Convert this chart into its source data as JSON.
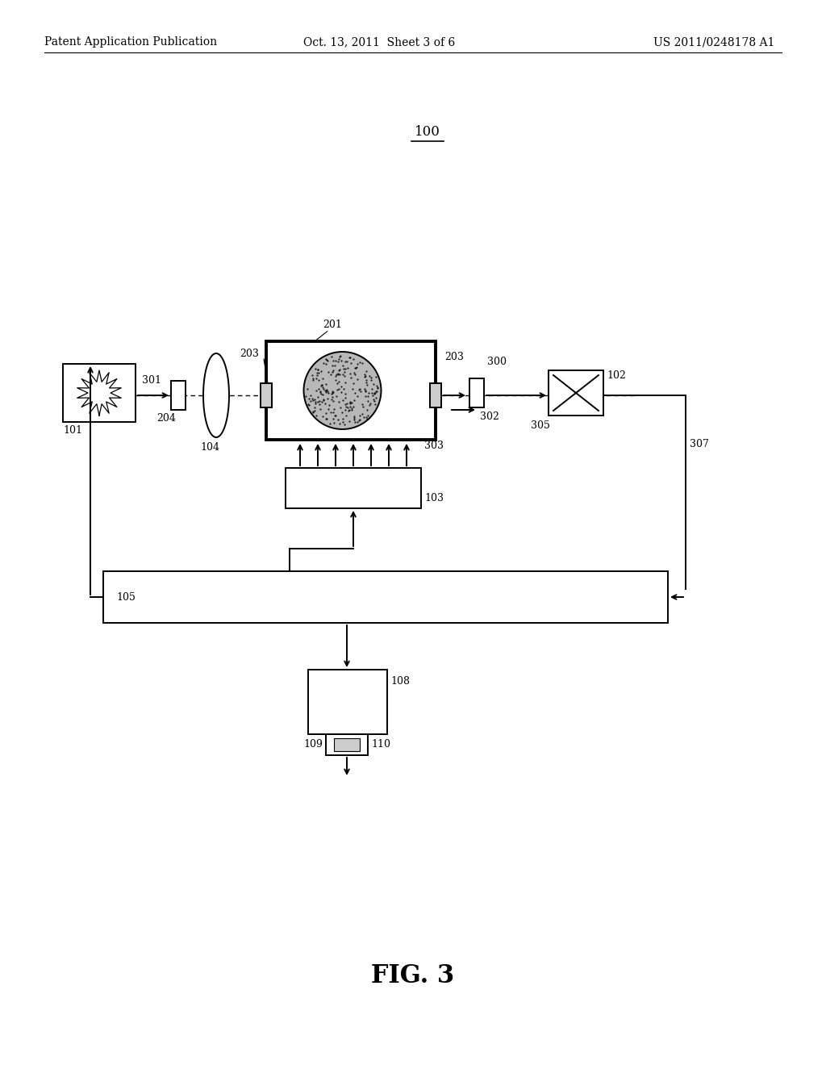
{
  "bg_color": "#ffffff",
  "header_left": "Patent Application Publication",
  "header_mid": "Oct. 13, 2011  Sheet 3 of 6",
  "header_right": "US 2011/0248178 A1",
  "fig_label": "FIG. 3"
}
